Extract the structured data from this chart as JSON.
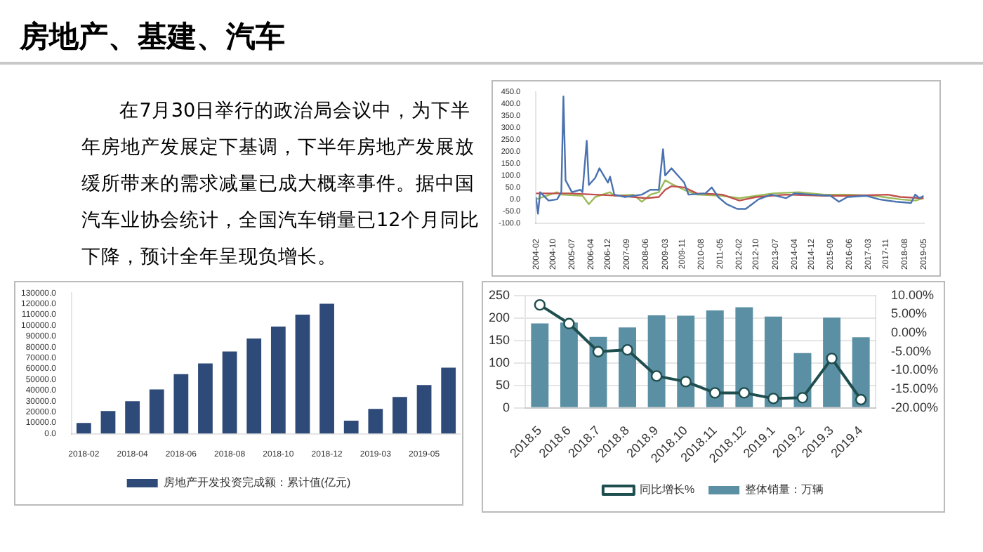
{
  "chart_data": [
    {
      "type": "other",
      "title": "房地产、基建、汽车",
      "annotations": [
        "在7月30日举行的政治局会议中，为下半年房地产发展定下基调，下半年房地产发展放缓所带来的需求减量已成大概率事件。据中国汽车业协会统计，全国汽车销量已12个月同比下降，预计全年呈现负增长。"
      ]
    },
    {
      "type": "line",
      "marker": "none",
      "grid": false,
      "legend": false,
      "xlim": [
        "2004-02",
        "2019-05"
      ],
      "xticks": [
        {
          "value": "2004-02",
          "label": "2004-02"
        },
        {
          "value": "2004-10",
          "label": "2004-10"
        },
        {
          "value": "2005-07",
          "label": "2005-07"
        },
        {
          "value": "2006-04",
          "label": "2006-04"
        },
        {
          "value": "2006-12",
          "label": "2006-12"
        },
        {
          "value": "2007-09",
          "label": "2007-09"
        },
        {
          "value": "2008-06",
          "label": "2008-06"
        },
        {
          "value": "2009-03",
          "label": "2009-03"
        },
        {
          "value": "2009-11",
          "label": "2009-11"
        },
        {
          "value": "2010-08",
          "label": "2010-08"
        },
        {
          "value": "2011-05",
          "label": "2011-05"
        },
        {
          "value": "2012-02",
          "label": "2012-02"
        },
        {
          "value": "2012-10",
          "label": "2012-10"
        },
        {
          "value": "2013-07",
          "label": "2013-07"
        },
        {
          "value": "2014-04",
          "label": "2014-04"
        },
        {
          "value": "2014-12",
          "label": "2014-12"
        },
        {
          "value": "2015-09",
          "label": "2015-09"
        },
        {
          "value": "2016-06",
          "label": "2016-06"
        },
        {
          "value": "2017-03",
          "label": "2017-03"
        },
        {
          "value": "2017-11",
          "label": "2017-11"
        },
        {
          "value": "2018-08",
          "label": "2018-08"
        },
        {
          "value": "2019-05",
          "label": "2019-05"
        }
      ],
      "ylim": [
        -100,
        450
      ],
      "yticks": [
        {
          "value": -100,
          "label": "-100.0"
        },
        {
          "value": -50,
          "label": "-50.0"
        },
        {
          "value": 0,
          "label": "0.0"
        },
        {
          "value": 50,
          "label": "50.0"
        },
        {
          "value": 100,
          "label": "100.0"
        },
        {
          "value": 150,
          "label": "150.0"
        },
        {
          "value": 200,
          "label": "200.0"
        },
        {
          "value": 250,
          "label": "250.0"
        },
        {
          "value": 300,
          "label": "300.0"
        },
        {
          "value": 350,
          "label": "350.0"
        },
        {
          "value": 400,
          "label": "400.0"
        },
        {
          "value": 450,
          "label": "450.0"
        }
      ],
      "series": [
        {
          "color": "#4a72b0",
          "x": [
            "2004-02",
            "2004-03",
            "2004-04",
            "2004-08",
            "2004-12",
            "2005-02",
            "2005-03",
            "2005-04",
            "2005-07",
            "2005-11",
            "2005-12",
            "2006-02",
            "2006-03",
            "2006-06",
            "2006-08",
            "2006-10",
            "2006-12",
            "2007-01",
            "2007-03",
            "2007-08",
            "2008-04",
            "2008-08",
            "2008-12",
            "2009-02",
            "2009-03",
            "2009-06",
            "2009-10",
            "2009-12",
            "2010-02",
            "2010-10",
            "2011-01",
            "2011-04",
            "2011-08",
            "2012-01",
            "2012-05",
            "2012-08",
            "2012-11",
            "2013-05",
            "2013-12",
            "2014-04",
            "2014-12",
            "2015-09",
            "2016-01",
            "2016-05",
            "2017-02",
            "2017-08",
            "2018-04",
            "2018-11",
            "2019-01",
            "2019-03",
            "2019-05"
          ],
          "values": [
            10,
            -60,
            30,
            -5,
            0,
            30,
            430,
            80,
            30,
            40,
            30,
            245,
            60,
            90,
            130,
            100,
            70,
            95,
            20,
            10,
            20,
            40,
            40,
            210,
            100,
            130,
            90,
            70,
            20,
            25,
            50,
            10,
            -20,
            -40,
            -40,
            -20,
            0,
            20,
            5,
            25,
            20,
            15,
            -10,
            10,
            15,
            0,
            -10,
            -15,
            20,
            5,
            15
          ]
        },
        {
          "color": "#c0504d",
          "x": [
            "2004-02",
            "2005-06",
            "2006-06",
            "2007-06",
            "2008-06",
            "2008-12",
            "2009-03",
            "2009-06",
            "2009-12",
            "2010-06",
            "2011-06",
            "2012-02",
            "2012-10",
            "2013-12",
            "2015-06",
            "2016-06",
            "2017-12",
            "2018-06",
            "2019-05"
          ],
          "values": [
            25,
            25,
            20,
            15,
            5,
            10,
            40,
            55,
            50,
            25,
            20,
            -5,
            10,
            20,
            15,
            15,
            20,
            10,
            5
          ]
        },
        {
          "color": "#9bbb59",
          "x": [
            "2004-02",
            "2004-12",
            "2005-02",
            "2005-12",
            "2006-03",
            "2006-06",
            "2007-01",
            "2007-03",
            "2007-12",
            "2008-04",
            "2008-08",
            "2008-12",
            "2009-03",
            "2009-06",
            "2009-12",
            "2010-06",
            "2011-06",
            "2012-02",
            "2012-10",
            "2013-06",
            "2014-06",
            "2015-06",
            "2016-06",
            "2017-06",
            "2018-06",
            "2019-01",
            "2019-05"
          ],
          "values": [
            0,
            30,
            20,
            15,
            -20,
            10,
            30,
            15,
            20,
            -10,
            20,
            30,
            80,
            65,
            40,
            20,
            15,
            5,
            15,
            25,
            30,
            20,
            20,
            15,
            0,
            -5,
            5
          ]
        }
      ]
    },
    {
      "type": "bar",
      "grid": false,
      "legend": "bottom",
      "categories": [
        "2018-02",
        null,
        "2018-04",
        null,
        "2018-06",
        null,
        "2018-08",
        null,
        "2018-10",
        null,
        "2018-12",
        null,
        "2019-03",
        null,
        "2019-05",
        null
      ],
      "ylim": [
        0,
        130000
      ],
      "yticks": [
        {
          "value": 0,
          "label": "0.0"
        },
        {
          "value": 10000,
          "label": "10000.0"
        },
        {
          "value": 20000,
          "label": "20000.0"
        },
        {
          "value": 30000,
          "label": "30000.0"
        },
        {
          "value": 40000,
          "label": "40000.0"
        },
        {
          "value": 50000,
          "label": "50000.0"
        },
        {
          "value": 60000,
          "label": "60000.0"
        },
        {
          "value": 70000,
          "label": "70000.0"
        },
        {
          "value": 80000,
          "label": "80000.0"
        },
        {
          "value": 90000,
          "label": "90000.0"
        },
        {
          "value": 100000,
          "label": "100000.0"
        },
        {
          "value": 110000,
          "label": "110000.0"
        },
        {
          "value": 120000,
          "label": "120000.0"
        },
        {
          "value": 130000,
          "label": "130000.0"
        }
      ],
      "series": [
        {
          "name": "房地产开发投资完成额：累计值(亿元)",
          "color": "#2e4a78",
          "values": [
            10000,
            21000,
            30000,
            41000,
            55000,
            65000,
            76000,
            88000,
            99000,
            110000,
            120000,
            12000,
            23000,
            34000,
            45000,
            61000
          ]
        }
      ]
    },
    {
      "type": "bar",
      "grid": "y",
      "legend": "bottom",
      "categories": [
        "2018.5",
        "2018.6",
        "2018.7",
        "2018.8",
        "2018.9",
        "2018.10",
        "2018.11",
        "2018.12",
        "2019.1",
        "2019.2",
        "2019.3",
        "2019.4"
      ],
      "ylim": [
        0,
        250
      ],
      "yticks": [
        0,
        50,
        100,
        150,
        200,
        250
      ],
      "y2lim": [
        -20,
        10
      ],
      "y2ticks": [
        {
          "value": -20,
          "label": "-20.00%"
        },
        {
          "value": -15,
          "label": "-15.00%"
        },
        {
          "value": -10,
          "label": "-10.00%"
        },
        {
          "value": -5,
          "label": "-5.00%"
        },
        {
          "value": 0,
          "label": "0.00%"
        },
        {
          "value": 5,
          "label": "5.00%"
        },
        {
          "value": 10,
          "label": "10.00%"
        }
      ],
      "series": [
        {
          "name": "整体销量：万辆",
          "color": "#5b8fa3",
          "values": [
            188,
            190,
            158,
            179,
            206,
            205,
            217,
            224,
            203,
            122,
            201,
            157
          ]
        },
        {
          "name": "同比增长%",
          "type": "line",
          "axis": "y2",
          "marker": "circle",
          "color": "#1f4e4f",
          "values": [
            7.5,
            2.5,
            -5,
            -4.5,
            -11.5,
            -13,
            -16,
            -16,
            -17.5,
            -17.3,
            -6.8,
            -17.8
          ]
        }
      ]
    }
  ]
}
